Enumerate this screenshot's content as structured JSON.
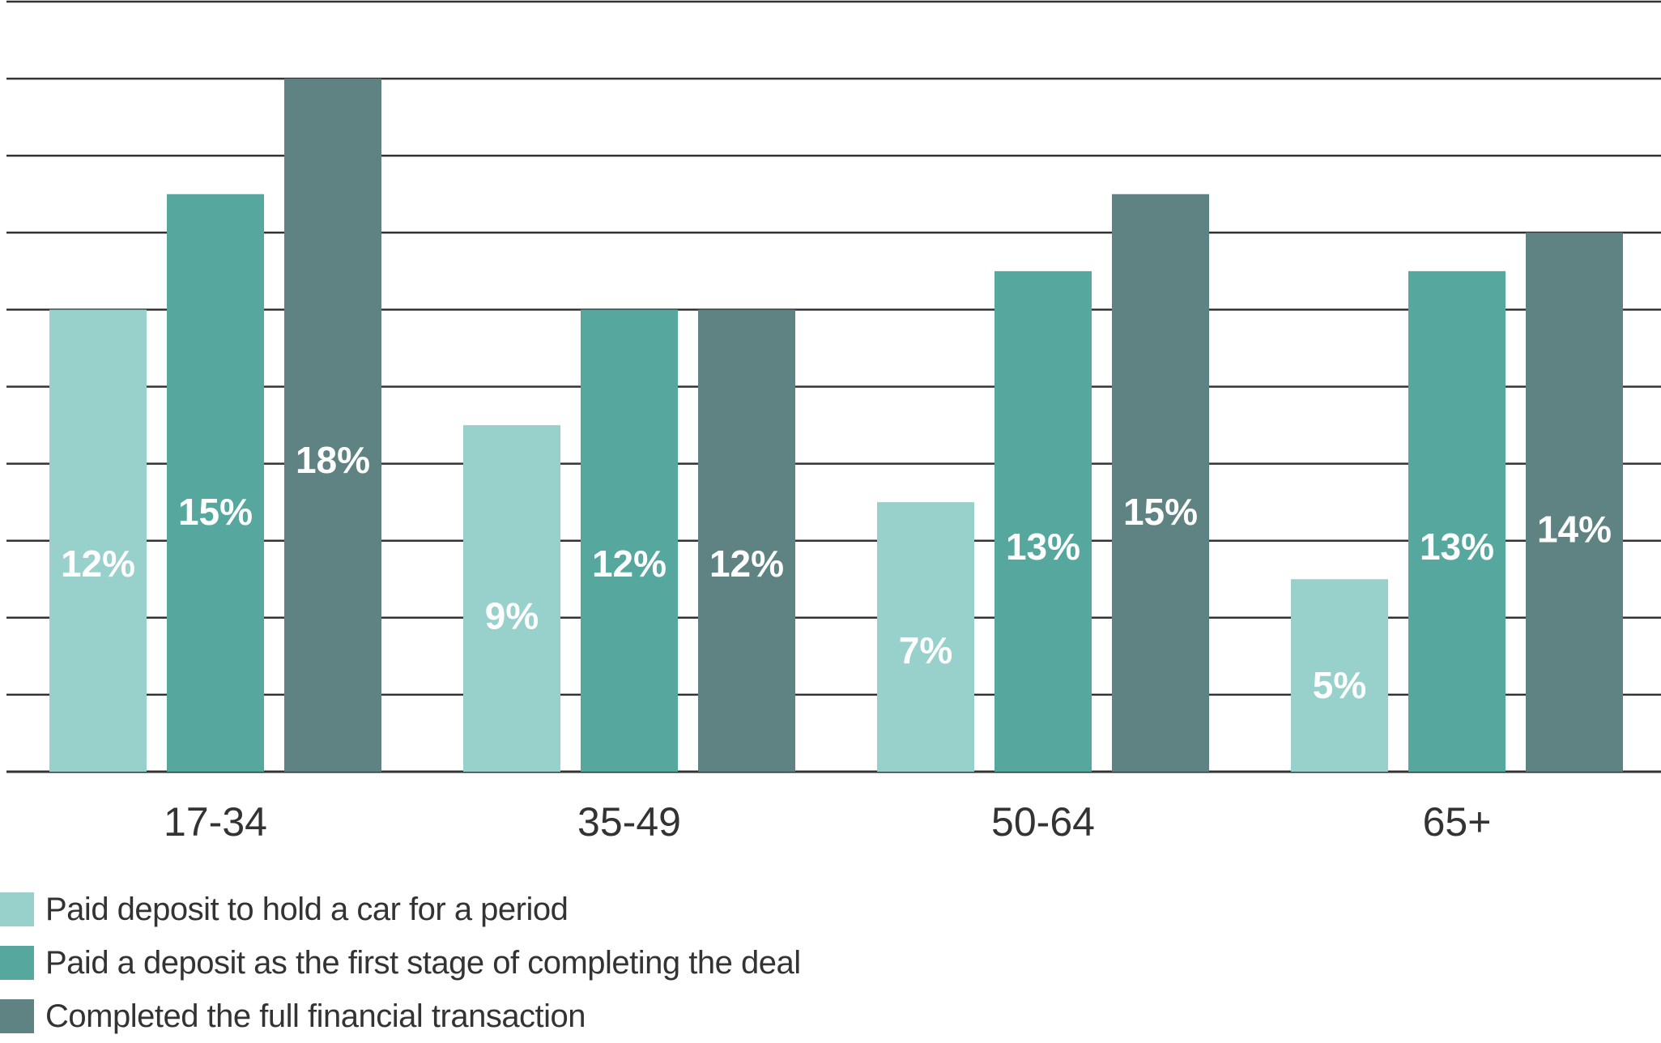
{
  "chart_data": {
    "type": "bar",
    "categories": [
      "17-34",
      "35-49",
      "50-64",
      "65+"
    ],
    "series": [
      {
        "name": "Paid deposit to hold a car for a period",
        "values": [
          12,
          9,
          7,
          5
        ],
        "labels": [
          "12%",
          "9%",
          "7%",
          "5%"
        ],
        "color": "#98d0cc"
      },
      {
        "name": "Paid a deposit as the first stage of completing the deal",
        "values": [
          15,
          12,
          13,
          13
        ],
        "labels": [
          "15%",
          "12%",
          "13%",
          "13%"
        ],
        "color": "#56a89f"
      },
      {
        "name": "Completed the full financial transaction",
        "values": [
          18,
          12,
          15,
          14
        ],
        "labels": [
          "18%",
          "12%",
          "15%",
          "14%"
        ],
        "color": "#5e8382"
      }
    ],
    "ylim": [
      0,
      20
    ],
    "grid": true,
    "legend_position": "bottom-left"
  }
}
